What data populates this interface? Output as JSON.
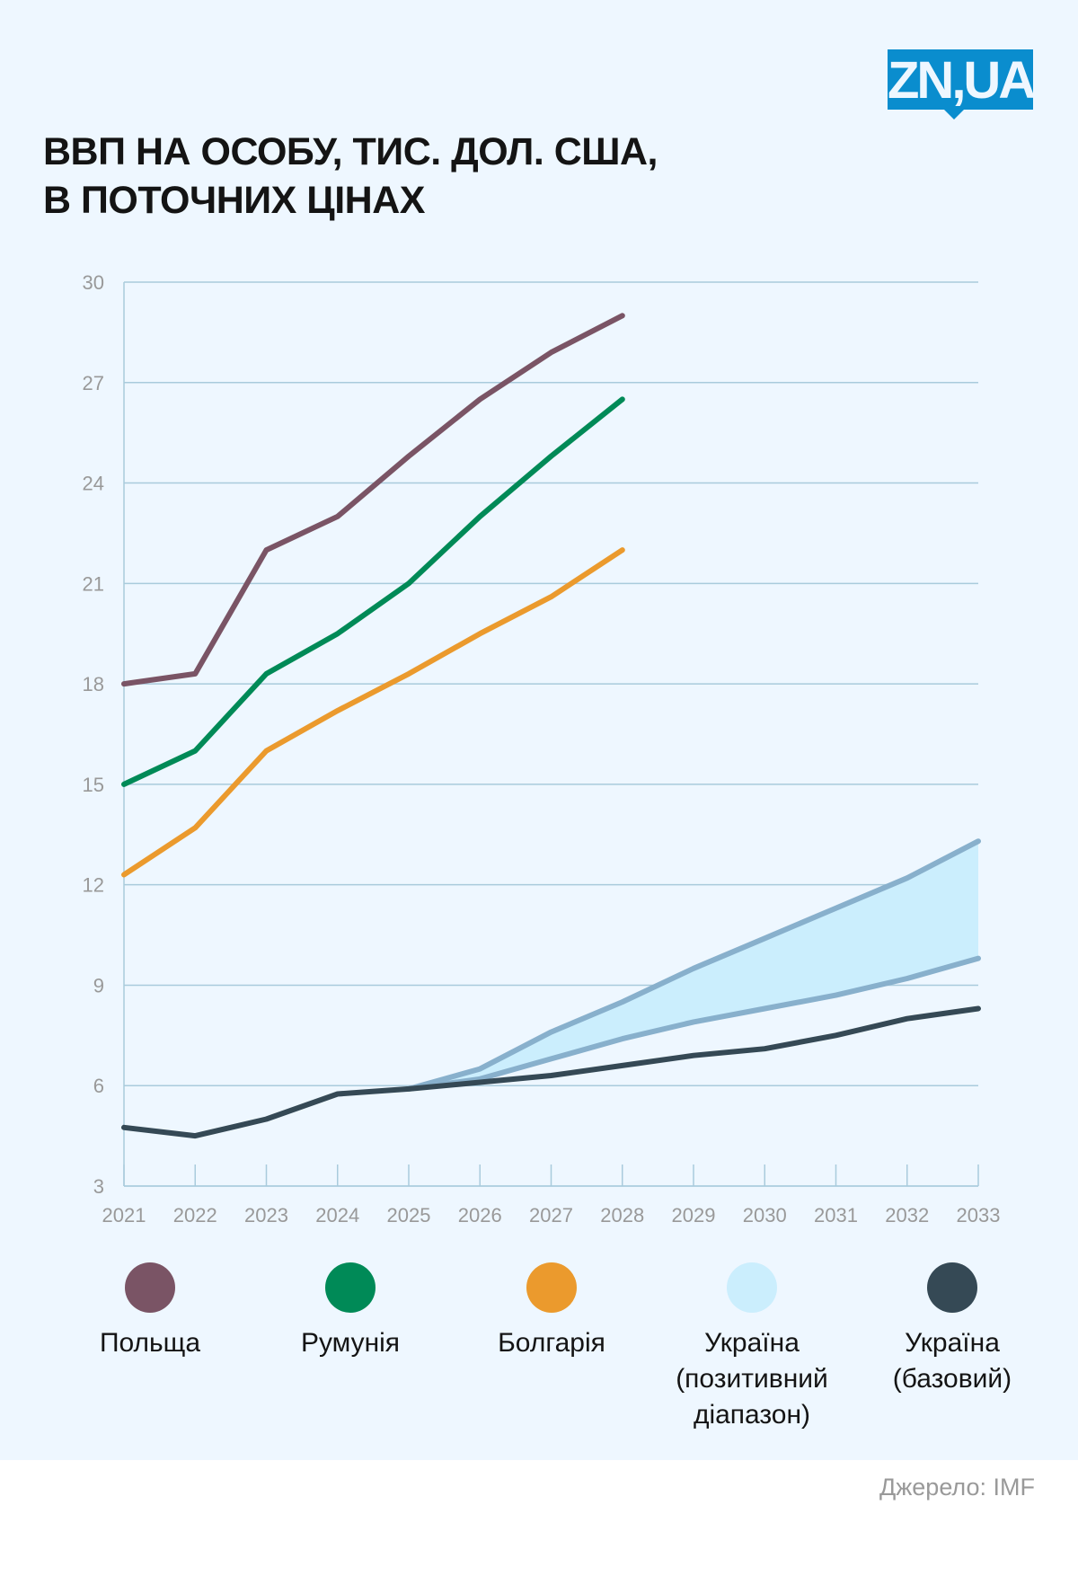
{
  "logo": {
    "text": "ZN,UA",
    "color": "#0a8dce"
  },
  "title": {
    "line1": "ВВП НА ОСОБУ, ТИС. ДОЛ. США,",
    "line2": "В ПОТОЧНИХ ЦІНАХ"
  },
  "source": "Джерело: IMF",
  "chart_data": {
    "type": "line",
    "title": "ВВП на особу, тис. дол. США, в поточних цінах",
    "xlabel": "",
    "ylabel": "",
    "x": [
      "2021",
      "2022",
      "2023",
      "2024",
      "2025",
      "2026",
      "2027",
      "2028",
      "2029",
      "2030",
      "2031",
      "2032",
      "2033"
    ],
    "ylim": [
      3,
      30
    ],
    "yticks": [
      "3",
      "6",
      "9",
      "12",
      "15",
      "18",
      "21",
      "24",
      "27",
      "30"
    ],
    "grid": true,
    "legend_position": "bottom",
    "series": [
      {
        "name": "Польща",
        "color": "#7a5465",
        "values": [
          18.0,
          18.3,
          22.0,
          23.0,
          24.8,
          26.5,
          27.9,
          29.0,
          null,
          null,
          null,
          null,
          null
        ]
      },
      {
        "name": "Румунія",
        "color": "#008a57",
        "values": [
          15.0,
          16.0,
          18.3,
          19.5,
          21.0,
          23.0,
          24.8,
          26.5,
          null,
          null,
          null,
          null,
          null
        ]
      },
      {
        "name": "Болгарія",
        "color": "#eb9a2d",
        "values": [
          12.3,
          13.7,
          16.0,
          17.2,
          18.3,
          19.5,
          20.6,
          22.0,
          null,
          null,
          null,
          null,
          null
        ]
      },
      {
        "name": "Україна (позитивний діапазон)",
        "type": "band",
        "color": "#cbeefd",
        "line_color": "#88b0cc",
        "upper": [
          null,
          null,
          null,
          null,
          5.9,
          6.5,
          7.6,
          8.5,
          9.5,
          10.4,
          11.3,
          12.2,
          13.3
        ],
        "lower": [
          null,
          null,
          null,
          null,
          5.9,
          6.2,
          6.8,
          7.4,
          7.9,
          8.3,
          8.7,
          9.2,
          9.8
        ]
      },
      {
        "name": "Україна (базовий)",
        "color": "#354955",
        "values": [
          4.75,
          4.5,
          5.0,
          5.75,
          5.9,
          6.1,
          6.3,
          6.6,
          6.9,
          7.1,
          7.5,
          8.0,
          8.3
        ]
      }
    ]
  },
  "legend": [
    {
      "label_lines": [
        "Польща"
      ],
      "color": "#7a5465"
    },
    {
      "label_lines": [
        "Румунія"
      ],
      "color": "#008a57"
    },
    {
      "label_lines": [
        "Болгарія"
      ],
      "color": "#eb9a2d"
    },
    {
      "label_lines": [
        "Україна",
        "(позитивний",
        "діапазон)"
      ],
      "color": "#cbeefd"
    },
    {
      "label_lines": [
        "Україна",
        "(базовий)"
      ],
      "color": "#354955"
    }
  ]
}
